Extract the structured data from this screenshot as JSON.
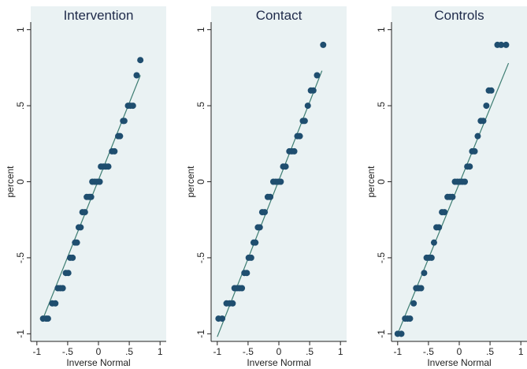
{
  "chart_data": [
    {
      "type": "scatter",
      "title": "Intervention",
      "xlabel": "Inverse Normal",
      "ylabel": "percent",
      "xlim": [
        -1.1,
        1.1
      ],
      "ylim": [
        -1.05,
        1.05
      ],
      "xticks": [
        -1,
        -0.5,
        0,
        0.5,
        1
      ],
      "xtick_labels": [
        "-1",
        "-.5",
        "0",
        ".5",
        "1"
      ],
      "yticks": [
        -1,
        -0.5,
        0,
        0.5,
        1
      ],
      "ytick_labels": [
        "-1",
        "-.5",
        "0",
        ".5",
        "1"
      ],
      "grid": false,
      "reference_line": {
        "x": [
          -0.92,
          0.68
        ],
        "y": [
          -0.92,
          0.7
        ]
      },
      "points": [
        [
          -0.9,
          -0.9
        ],
        [
          -0.85,
          -0.9
        ],
        [
          -0.82,
          -0.9
        ],
        [
          -0.75,
          -0.8
        ],
        [
          -0.7,
          -0.8
        ],
        [
          -0.66,
          -0.7
        ],
        [
          -0.62,
          -0.7
        ],
        [
          -0.58,
          -0.7
        ],
        [
          -0.53,
          -0.6
        ],
        [
          -0.49,
          -0.6
        ],
        [
          -0.46,
          -0.5
        ],
        [
          -0.42,
          -0.5
        ],
        [
          -0.38,
          -0.4
        ],
        [
          -0.35,
          -0.4
        ],
        [
          -0.32,
          -0.3
        ],
        [
          -0.29,
          -0.3
        ],
        [
          -0.26,
          -0.2
        ],
        [
          -0.22,
          -0.2
        ],
        [
          -0.19,
          -0.1
        ],
        [
          -0.15,
          -0.1
        ],
        [
          -0.12,
          -0.1
        ],
        [
          -0.1,
          0
        ],
        [
          -0.06,
          0
        ],
        [
          -0.02,
          0
        ],
        [
          0.02,
          0
        ],
        [
          0.04,
          0.1
        ],
        [
          0.08,
          0.1
        ],
        [
          0.12,
          0.1
        ],
        [
          0.16,
          0.1
        ],
        [
          0.22,
          0.2
        ],
        [
          0.26,
          0.2
        ],
        [
          0.32,
          0.3
        ],
        [
          0.35,
          0.3
        ],
        [
          0.4,
          0.4
        ],
        [
          0.42,
          0.4
        ],
        [
          0.48,
          0.5
        ],
        [
          0.52,
          0.5
        ],
        [
          0.56,
          0.5
        ],
        [
          0.62,
          0.7
        ],
        [
          0.68,
          0.8
        ]
      ]
    },
    {
      "type": "scatter",
      "title": "Contact",
      "xlabel": "Inverse Normal",
      "ylabel": "percent",
      "xlim": [
        -1.1,
        1.1
      ],
      "ylim": [
        -1.05,
        1.05
      ],
      "xticks": [
        -1,
        -0.5,
        0,
        0.5,
        1
      ],
      "xtick_labels": [
        "-1",
        "-.5",
        "0",
        ".5",
        "1"
      ],
      "yticks": [
        -1,
        -0.5,
        0,
        0.5,
        1
      ],
      "ytick_labels": [
        "-1",
        "-.5",
        "0",
        ".5",
        "1"
      ],
      "grid": false,
      "reference_line": {
        "x": [
          -1.0,
          0.7
        ],
        "y": [
          -1.02,
          0.73
        ]
      },
      "points": [
        [
          -0.98,
          -0.9
        ],
        [
          -0.92,
          -0.9
        ],
        [
          -0.85,
          -0.8
        ],
        [
          -0.8,
          -0.8
        ],
        [
          -0.75,
          -0.8
        ],
        [
          -0.72,
          -0.7
        ],
        [
          -0.68,
          -0.7
        ],
        [
          -0.64,
          -0.7
        ],
        [
          -0.6,
          -0.7
        ],
        [
          -0.56,
          -0.6
        ],
        [
          -0.52,
          -0.6
        ],
        [
          -0.49,
          -0.5
        ],
        [
          -0.45,
          -0.5
        ],
        [
          -0.41,
          -0.4
        ],
        [
          -0.38,
          -0.4
        ],
        [
          -0.34,
          -0.3
        ],
        [
          -0.31,
          -0.3
        ],
        [
          -0.27,
          -0.2
        ],
        [
          -0.23,
          -0.2
        ],
        [
          -0.18,
          -0.1
        ],
        [
          -0.14,
          -0.1
        ],
        [
          -0.09,
          0
        ],
        [
          -0.05,
          0
        ],
        [
          -0.01,
          0
        ],
        [
          0.03,
          0
        ],
        [
          0.07,
          0.1
        ],
        [
          0.11,
          0.1
        ],
        [
          0.17,
          0.2
        ],
        [
          0.21,
          0.2
        ],
        [
          0.25,
          0.2
        ],
        [
          0.3,
          0.3
        ],
        [
          0.34,
          0.3
        ],
        [
          0.39,
          0.4
        ],
        [
          0.42,
          0.4
        ],
        [
          0.47,
          0.5
        ],
        [
          0.52,
          0.6
        ],
        [
          0.56,
          0.6
        ],
        [
          0.62,
          0.7
        ],
        [
          0.72,
          0.9
        ]
      ]
    },
    {
      "type": "scatter",
      "title": "Controls",
      "xlabel": "Inverse Normal",
      "ylabel": "percent",
      "xlim": [
        -1.1,
        1.1
      ],
      "ylim": [
        -1.05,
        1.05
      ],
      "xticks": [
        -1,
        -0.5,
        0,
        0.5,
        1
      ],
      "xtick_labels": [
        "-1",
        "-.5",
        "0",
        ".5",
        "1"
      ],
      "yticks": [
        -1,
        -0.5,
        0,
        0.5,
        1
      ],
      "ytick_labels": [
        "-1",
        "-.5",
        "0",
        ".5",
        "1"
      ],
      "grid": false,
      "reference_line": {
        "x": [
          -1.0,
          0.8
        ],
        "y": [
          -1.0,
          0.78
        ]
      },
      "points": [
        [
          -1.0,
          -1.0
        ],
        [
          -0.94,
          -1.0
        ],
        [
          -0.88,
          -0.9
        ],
        [
          -0.84,
          -0.9
        ],
        [
          -0.8,
          -0.9
        ],
        [
          -0.74,
          -0.8
        ],
        [
          -0.7,
          -0.7
        ],
        [
          -0.66,
          -0.7
        ],
        [
          -0.62,
          -0.7
        ],
        [
          -0.57,
          -0.6
        ],
        [
          -0.53,
          -0.5
        ],
        [
          -0.49,
          -0.5
        ],
        [
          -0.45,
          -0.5
        ],
        [
          -0.41,
          -0.4
        ],
        [
          -0.37,
          -0.3
        ],
        [
          -0.33,
          -0.3
        ],
        [
          -0.28,
          -0.2
        ],
        [
          -0.24,
          -0.2
        ],
        [
          -0.19,
          -0.1
        ],
        [
          -0.15,
          -0.1
        ],
        [
          -0.11,
          -0.1
        ],
        [
          -0.07,
          0
        ],
        [
          -0.03,
          0
        ],
        [
          0.01,
          0
        ],
        [
          0.05,
          0
        ],
        [
          0.09,
          0
        ],
        [
          0.13,
          0.1
        ],
        [
          0.17,
          0.1
        ],
        [
          0.21,
          0.2
        ],
        [
          0.25,
          0.2
        ],
        [
          0.3,
          0.3
        ],
        [
          0.35,
          0.4
        ],
        [
          0.39,
          0.4
        ],
        [
          0.44,
          0.5
        ],
        [
          0.48,
          0.6
        ],
        [
          0.52,
          0.6
        ],
        [
          0.62,
          0.9
        ],
        [
          0.68,
          0.9
        ],
        [
          0.76,
          0.9
        ]
      ]
    }
  ],
  "colors": {
    "marker": "#1f4e6f",
    "line": "#3d7d72",
    "plot_background": "#eaf2f3",
    "title_text": "#1e2a4a"
  }
}
